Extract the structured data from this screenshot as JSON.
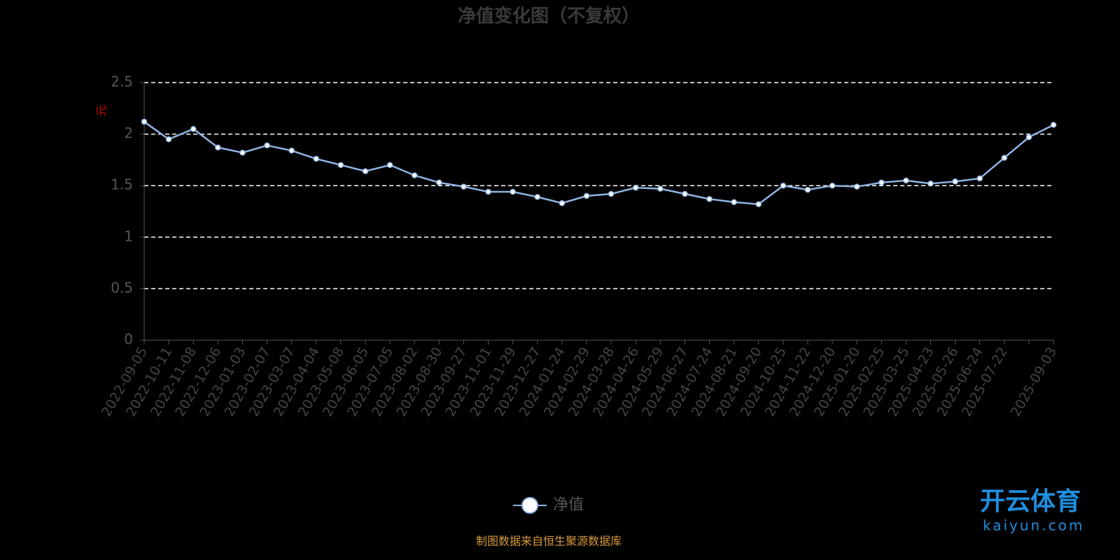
{
  "chart_data": {
    "type": "line",
    "title": "净值变化图（不复权）",
    "y_label": "元",
    "categories": [
      "2022-09-05",
      "2022-10-11",
      "2022-11-08",
      "2022-12-06",
      "2023-01-03",
      "2023-02-07",
      "2023-03-07",
      "2023-04-04",
      "2023-05-08",
      "2023-06-05",
      "2023-07-05",
      "2023-08-02",
      "2023-08-30",
      "2023-09-27",
      "2023-11-01",
      "2023-11-29",
      "2023-12-27",
      "2024-01-24",
      "2024-02-29",
      "2024-03-28",
      "2024-04-26",
      "2024-05-29",
      "2024-06-27",
      "2024-07-24",
      "2024-08-21",
      "2024-09-20",
      "2024-10-25",
      "2024-11-22",
      "2024-12-20",
      "2025-01-20",
      "2025-02-25",
      "2025-03-25",
      "2025-04-23",
      "2025-05-26",
      "2025-06-24",
      "2025-07-22",
      null,
      "2025-09-03"
    ],
    "series": [
      {
        "name": "净值",
        "color": "#8fb4e3",
        "values": [
          2.12,
          1.95,
          2.05,
          1.87,
          1.82,
          1.89,
          1.84,
          1.76,
          1.7,
          1.64,
          1.7,
          1.6,
          1.53,
          1.49,
          1.44,
          1.44,
          1.39,
          1.33,
          1.4,
          1.42,
          1.48,
          1.47,
          1.42,
          1.37,
          1.34,
          1.32,
          1.5,
          1.46,
          1.5,
          1.49,
          1.53,
          1.55,
          1.52,
          1.54,
          1.57,
          1.77,
          1.97,
          2.09
        ]
      }
    ],
    "ylim": [
      0,
      2.5
    ],
    "yticks": [
      0,
      0.5,
      1,
      1.5,
      2,
      2.5
    ],
    "grid": true,
    "source": "制图数据来自恒生聚源数据库",
    "watermark": "开云体育",
    "watermark_url": "kaiyun.com"
  }
}
